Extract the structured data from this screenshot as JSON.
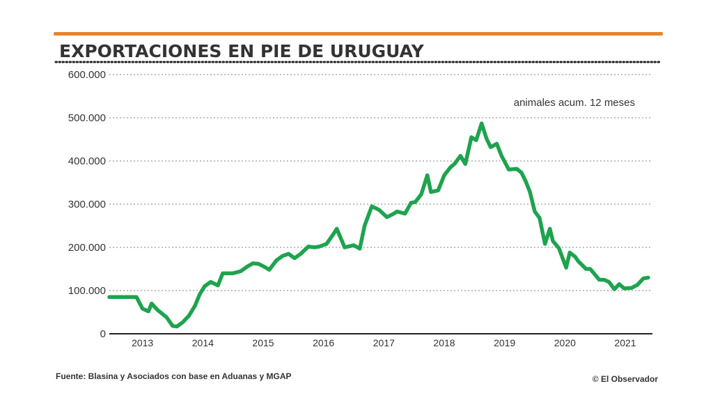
{
  "colors": {
    "accent_bar": "#e8832a",
    "series_line": "#1ea34f",
    "grid": "#9a9a9a",
    "text": "#333333"
  },
  "chart_data": {
    "type": "line",
    "title": "EXPORTACIONES EN PIE DE URUGUAY",
    "annotation": "animales acum. 12 meses",
    "y_ticks": [
      "0",
      "100.000",
      "200.000",
      "300.000",
      "400.000",
      "500.000",
      "600.000"
    ],
    "y_tick_values": [
      0,
      100000,
      200000,
      300000,
      400000,
      500000,
      600000
    ],
    "ylim": [
      0,
      600000
    ],
    "x_ticks": [
      "2013",
      "2014",
      "2015",
      "2016",
      "2017",
      "2018",
      "2019",
      "2020",
      "2021"
    ],
    "xlim": [
      2012.5,
      2021.5
    ],
    "grid": true,
    "series": [
      {
        "x": [
          2012.5,
          2012.9,
          2012.95,
          2013.05,
          2013.15,
          2013.2,
          2013.3,
          2013.45,
          2013.55,
          2013.62,
          2013.72,
          2013.82,
          2013.92,
          2014.0,
          2014.08,
          2014.18,
          2014.3,
          2014.38,
          2014.55,
          2014.68,
          2014.78,
          2014.88,
          2014.97,
          2015.07,
          2015.15,
          2015.27,
          2015.37,
          2015.47,
          2015.57,
          2015.67,
          2015.8,
          2015.9,
          2015.98,
          2016.1,
          2016.2,
          2016.27,
          2016.4,
          2016.55,
          2016.65,
          2016.73,
          2016.85,
          2016.97,
          2017.1,
          2017.2,
          2017.27,
          2017.4,
          2017.5,
          2017.57,
          2017.67,
          2017.77,
          2017.83,
          2017.95,
          2018.05,
          2018.15,
          2018.22,
          2018.32,
          2018.4,
          2018.5,
          2018.58,
          2018.67,
          2018.75,
          2018.82,
          2018.92,
          2019.0,
          2019.12,
          2019.25,
          2019.33,
          2019.4,
          2019.47,
          2019.55,
          2019.63,
          2019.72,
          2019.8,
          2019.85,
          2019.95,
          2020.07,
          2020.13,
          2020.22,
          2020.27,
          2020.4,
          2020.47,
          2020.62,
          2020.7,
          2020.78,
          2020.87,
          2020.95,
          2021.03,
          2021.15,
          2021.25,
          2021.35,
          2021.43
        ],
        "values": [
          85000,
          85000,
          85000,
          58000,
          52000,
          70000,
          55000,
          38000,
          18000,
          17000,
          27000,
          42000,
          65000,
          92000,
          110000,
          120000,
          112000,
          140000,
          140000,
          145000,
          155000,
          163000,
          162000,
          155000,
          148000,
          170000,
          180000,
          185000,
          175000,
          185000,
          202000,
          200000,
          202000,
          208000,
          228000,
          243000,
          200000,
          205000,
          197000,
          250000,
          295000,
          287000,
          270000,
          277000,
          283000,
          278000,
          303000,
          305000,
          323000,
          367000,
          328000,
          332000,
          367000,
          385000,
          393000,
          412000,
          393000,
          455000,
          448000,
          487000,
          452000,
          432000,
          440000,
          412000,
          380000,
          382000,
          373000,
          353000,
          328000,
          283000,
          268000,
          208000,
          243000,
          215000,
          198000,
          153000,
          188000,
          178000,
          168000,
          150000,
          150000,
          125000,
          125000,
          120000,
          103000,
          115000,
          105000,
          106000,
          113000,
          128000,
          130000
        ]
      }
    ]
  },
  "footer": {
    "source": "Fuente: Blasina y Asociados con base en Aduanas y MGAP",
    "copyright": "© El Observador"
  }
}
